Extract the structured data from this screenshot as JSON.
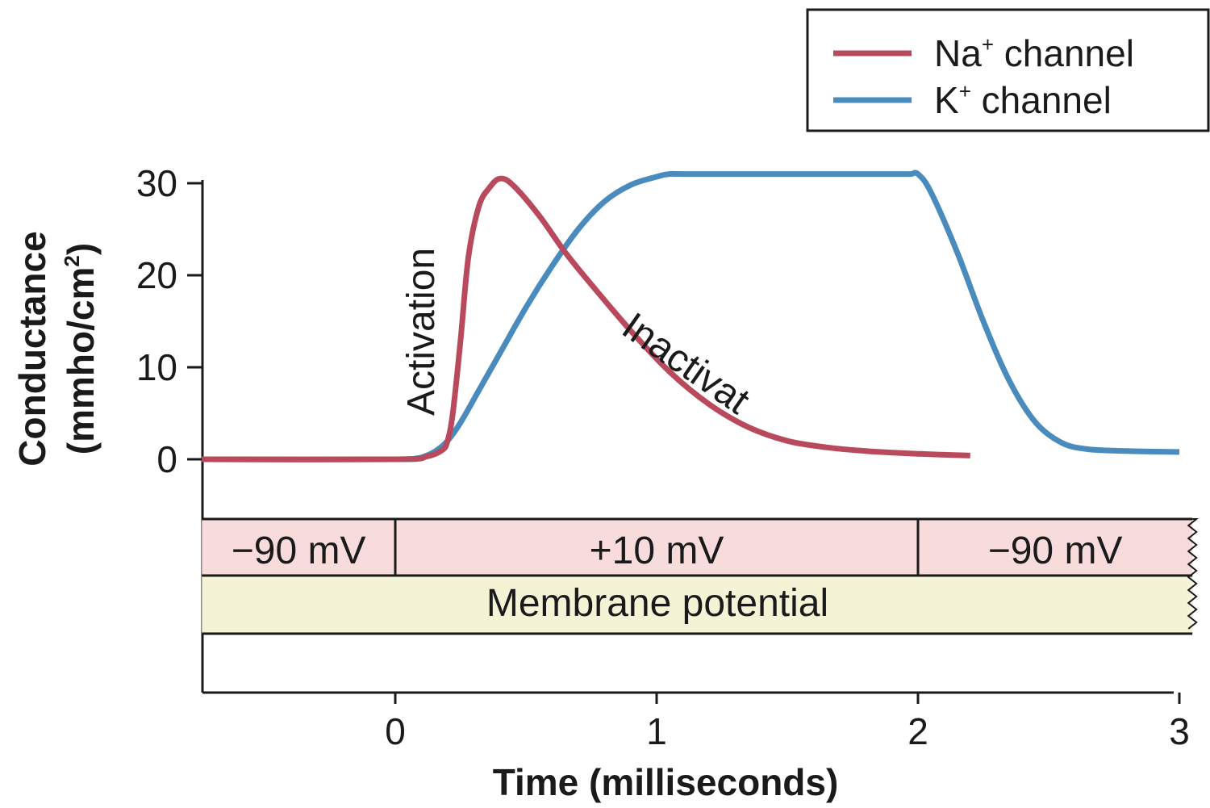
{
  "chart_data": {
    "type": "line",
    "xlabel": "Time (milliseconds)",
    "ylabel_line1": "Conductance",
    "ylabel_line2_base": "(mmho/cm",
    "ylabel_line2_sup": "2",
    "ylabel_line2_end": ")",
    "xlim": [
      -0.74,
      3.0
    ],
    "ylim": [
      0,
      30
    ],
    "x_ticks": [
      "0",
      "1",
      "2",
      "3"
    ],
    "y_ticks": [
      "0",
      "10",
      "20",
      "30"
    ],
    "grid": false,
    "legend_position": "top-right",
    "series": [
      {
        "name_base": "Na",
        "name_sup": "+",
        "name_rest": " channel",
        "color": "#b94a5e",
        "x": [
          -0.74,
          0.0,
          0.12,
          0.18,
          0.2,
          0.22,
          0.25,
          0.28,
          0.32,
          0.36,
          0.4,
          0.45,
          0.55,
          0.65,
          0.75,
          0.9,
          1.05,
          1.2,
          1.35,
          1.5,
          1.65,
          1.8,
          2.0,
          2.2
        ],
        "y": [
          0,
          0,
          0.3,
          1.0,
          2.0,
          5.0,
          13.0,
          22.0,
          27.5,
          29.5,
          30.5,
          29.8,
          26.5,
          22.5,
          19.0,
          14.0,
          9.5,
          6.0,
          3.5,
          2.0,
          1.3,
          0.9,
          0.6,
          0.4
        ]
      },
      {
        "name_base": "K",
        "name_sup": "+",
        "name_rest": " channel",
        "color": "#4a8bbd",
        "x": [
          -0.74,
          0.0,
          0.08,
          0.12,
          0.16,
          0.2,
          0.25,
          0.32,
          0.4,
          0.5,
          0.6,
          0.7,
          0.8,
          0.9,
          1.0,
          1.05,
          1.12,
          1.5,
          1.9,
          1.97,
          2.0,
          2.05,
          2.15,
          2.25,
          2.35,
          2.45,
          2.55,
          2.65,
          2.8,
          3.0
        ],
        "y": [
          0,
          0,
          0.1,
          0.4,
          1.0,
          2.0,
          4.0,
          7.5,
          11.5,
          16.5,
          21.0,
          25.0,
          28.0,
          29.8,
          30.7,
          31.0,
          31.0,
          31.0,
          31.0,
          31.0,
          31.0,
          29.0,
          22.5,
          15.0,
          8.5,
          4.0,
          1.8,
          1.1,
          0.9,
          0.8
        ]
      }
    ],
    "annotations": {
      "activation": "Activation",
      "inactivation": "Inactivat"
    },
    "membrane_potential": {
      "segments": [
        {
          "label": "−90 mV",
          "x_start": -0.74,
          "x_end": 0.0
        },
        {
          "label": "+10 mV",
          "x_start": 0.0,
          "x_end": 2.0
        },
        {
          "label": "−90 mV",
          "x_start": 2.0,
          "x_end": 3.05
        }
      ],
      "label": "Membrane potential",
      "voltage_color": "#f8dcdc",
      "label_color": "#f4f3d6"
    }
  }
}
